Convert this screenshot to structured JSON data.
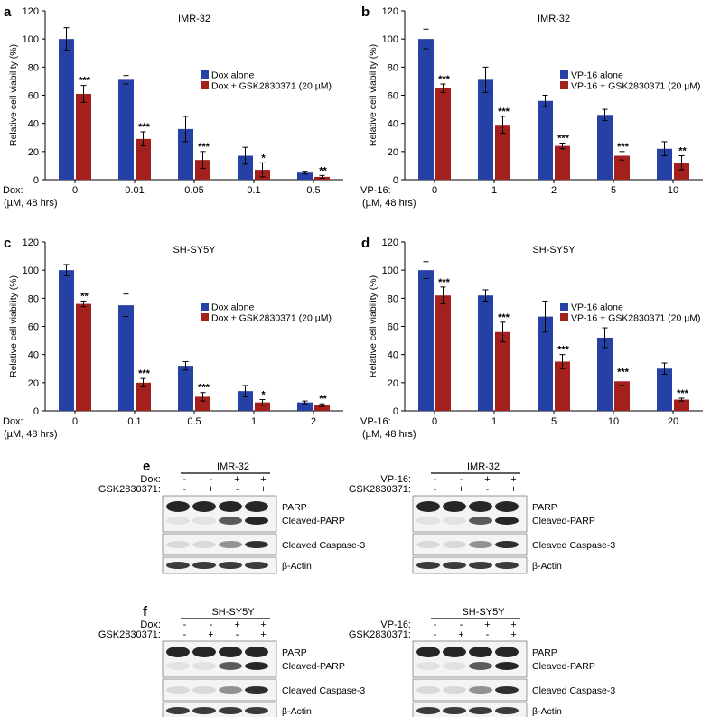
{
  "colors": {
    "blue": "#2541a6",
    "red": "#a4201d",
    "axis": "#000000",
    "blot_bg": "#f4f4f4",
    "band": "#1a1a1a"
  },
  "chart_data": [
    {
      "panel": "a",
      "type": "bar",
      "title": "IMR-32",
      "ylabel": "Relative cell viability (%)",
      "xlabel_drug": "Dox:",
      "xlabel_unit": "(µM, 48 hrs)",
      "ylim": [
        0,
        120
      ],
      "yticks": [
        0,
        20,
        40,
        60,
        80,
        100,
        120
      ],
      "categories": [
        "0",
        "0.01",
        "0.05",
        "0.1",
        "0.5"
      ],
      "legend_position": "right",
      "series": [
        {
          "name": "Dox alone",
          "color": "blue",
          "values": [
            100,
            71,
            36,
            17,
            5
          ],
          "errors": [
            8,
            3,
            9,
            6,
            1
          ]
        },
        {
          "name": "Dox + GSK2830371 (20 µM)",
          "color": "red",
          "values": [
            61,
            29,
            14,
            7,
            2
          ],
          "errors": [
            6,
            5,
            6,
            5,
            1
          ]
        }
      ],
      "significance": [
        "***",
        "***",
        "***",
        "*",
        "**"
      ]
    },
    {
      "panel": "b",
      "type": "bar",
      "title": "IMR-32",
      "ylabel": "Relative cell viability (%)",
      "xlabel_drug": "VP-16:",
      "xlabel_unit": "(µM, 48 hrs)",
      "ylim": [
        0,
        120
      ],
      "yticks": [
        0,
        20,
        40,
        60,
        80,
        100,
        120
      ],
      "categories": [
        "0",
        "1",
        "2",
        "5",
        "10"
      ],
      "legend_position": "right",
      "series": [
        {
          "name": "VP-16 alone",
          "color": "blue",
          "values": [
            100,
            71,
            56,
            46,
            22
          ],
          "errors": [
            7,
            9,
            4,
            4,
            5
          ]
        },
        {
          "name": "VP-16 + GSK2830371 (20 µM)",
          "color": "red",
          "values": [
            65,
            39,
            24,
            17,
            12
          ],
          "errors": [
            3,
            6,
            2,
            3,
            5
          ]
        }
      ],
      "significance": [
        "***",
        "***",
        "***",
        "***",
        "**"
      ]
    },
    {
      "panel": "c",
      "type": "bar",
      "title": "SH-SY5Y",
      "ylabel": "Relative cell viability (%)",
      "xlabel_drug": "Dox:",
      "xlabel_unit": "(µM, 48 hrs)",
      "ylim": [
        0,
        120
      ],
      "yticks": [
        0,
        20,
        40,
        60,
        80,
        100,
        120
      ],
      "categories": [
        "0",
        "0.1",
        "0.5",
        "1",
        "2"
      ],
      "legend_position": "right",
      "series": [
        {
          "name": "Dox alone",
          "color": "blue",
          "values": [
            100,
            75,
            32,
            14,
            6
          ],
          "errors": [
            4,
            8,
            3,
            4,
            1
          ]
        },
        {
          "name": "Dox + GSK2830371 (20 µM)",
          "color": "red",
          "values": [
            76,
            20,
            10,
            6,
            4
          ],
          "errors": [
            2,
            3,
            3,
            2,
            1
          ]
        }
      ],
      "significance": [
        "**",
        "***",
        "***",
        "*",
        "**"
      ]
    },
    {
      "panel": "d",
      "type": "bar",
      "title": "SH-SY5Y",
      "ylabel": "Relative cell viability (%)",
      "xlabel_drug": "VP-16:",
      "xlabel_unit": "(µM, 48 hrs)",
      "ylim": [
        0,
        120
      ],
      "yticks": [
        0,
        20,
        40,
        60,
        80,
        100,
        120
      ],
      "categories": [
        "0",
        "1",
        "5",
        "10",
        "20"
      ],
      "legend_position": "right",
      "series": [
        {
          "name": "VP-16 alone",
          "color": "blue",
          "values": [
            100,
            82,
            67,
            52,
            30
          ],
          "errors": [
            6,
            4,
            11,
            7,
            4
          ]
        },
        {
          "name": "VP-16 + GSK2830371 (20 µM)",
          "color": "red",
          "values": [
            82,
            56,
            35,
            21,
            8
          ],
          "errors": [
            6,
            7,
            5,
            3,
            1
          ]
        }
      ],
      "significance": [
        "***",
        "***",
        "***",
        "***",
        "***"
      ]
    }
  ],
  "blots": [
    {
      "panel": "e",
      "cell_line": "IMR-32",
      "drug_label": "Dox:",
      "inhibitor_label": "GSK2830371:",
      "drug_row": [
        "-",
        "-",
        "+",
        "+"
      ],
      "inhibitor_row": [
        "-",
        "+",
        "-",
        "+"
      ],
      "bands": [
        "PARP",
        "Cleaved-PARP",
        "Cleaved Caspase-3",
        "β-Actin"
      ]
    },
    {
      "panel": "",
      "cell_line": "IMR-32",
      "drug_label": "VP-16:",
      "inhibitor_label": "GSK2830371:",
      "drug_row": [
        "-",
        "-",
        "+",
        "+"
      ],
      "inhibitor_row": [
        "-",
        "+",
        "-",
        "+"
      ],
      "bands": [
        "PARP",
        "Cleaved-PARP",
        "Cleaved Caspase-3",
        "β-Actin"
      ]
    },
    {
      "panel": "f",
      "cell_line": "SH-SY5Y",
      "drug_label": "Dox:",
      "inhibitor_label": "GSK2830371:",
      "drug_row": [
        "-",
        "-",
        "+",
        "+"
      ],
      "inhibitor_row": [
        "-",
        "+",
        "-",
        "+"
      ],
      "bands": [
        "PARP",
        "Cleaved-PARP",
        "Cleaved Caspase-3",
        "β-Actin"
      ]
    },
    {
      "panel": "",
      "cell_line": "SH-SY5Y",
      "drug_label": "VP-16:",
      "inhibitor_label": "GSK2830371:",
      "drug_row": [
        "-",
        "-",
        "+",
        "+"
      ],
      "inhibitor_row": [
        "-",
        "+",
        "-",
        "+"
      ],
      "bands": [
        "PARP",
        "Cleaved-PARP",
        "Cleaved Caspase-3",
        "β-Actin"
      ]
    }
  ]
}
